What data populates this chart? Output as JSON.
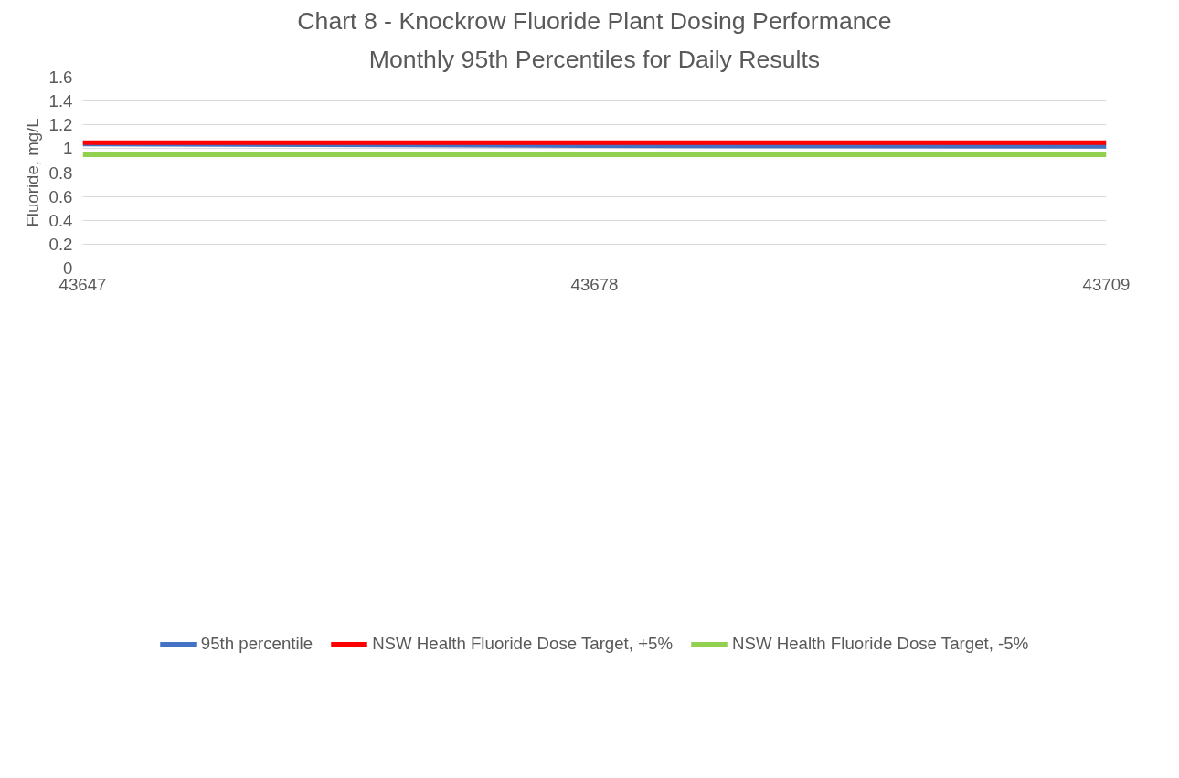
{
  "chart_data": {
    "type": "line",
    "title": "Chart 8 - Knockrow Fluoride Plant Dosing Performance",
    "subtitle": "Monthly 95th Percentiles for Daily Results",
    "ylabel": "Fluoride, mg/L",
    "categories": [
      "43647",
      "43678",
      "43709"
    ],
    "series": [
      {
        "name": "95th percentile",
        "color": "#4472c4",
        "values": [
          1.04,
          1.025,
          1.02
        ]
      },
      {
        "name": "NSW Health Fluoride Dose Target, +5%",
        "color": "#ff0000",
        "values": [
          1.05,
          1.05,
          1.05
        ]
      },
      {
        "name": "NSW Health Fluoride Dose Target, -5%",
        "color": "#92d050",
        "values": [
          0.95,
          0.95,
          0.95
        ]
      }
    ],
    "ylim": [
      0,
      1.6
    ],
    "yticks": [
      0,
      0.2,
      0.4,
      0.6,
      0.8,
      1,
      1.2,
      1.4,
      1.6
    ],
    "grid": "y",
    "legend": "bottom",
    "marker": "none",
    "line_style": "solid"
  }
}
